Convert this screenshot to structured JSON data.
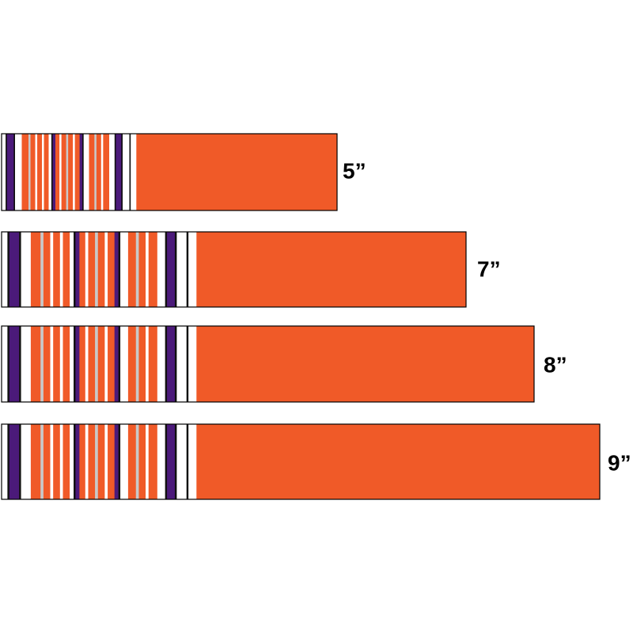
{
  "items": [
    {
      "label": "5”"
    },
    {
      "label": "7”"
    },
    {
      "label": "8”"
    },
    {
      "label": "9”"
    }
  ]
}
